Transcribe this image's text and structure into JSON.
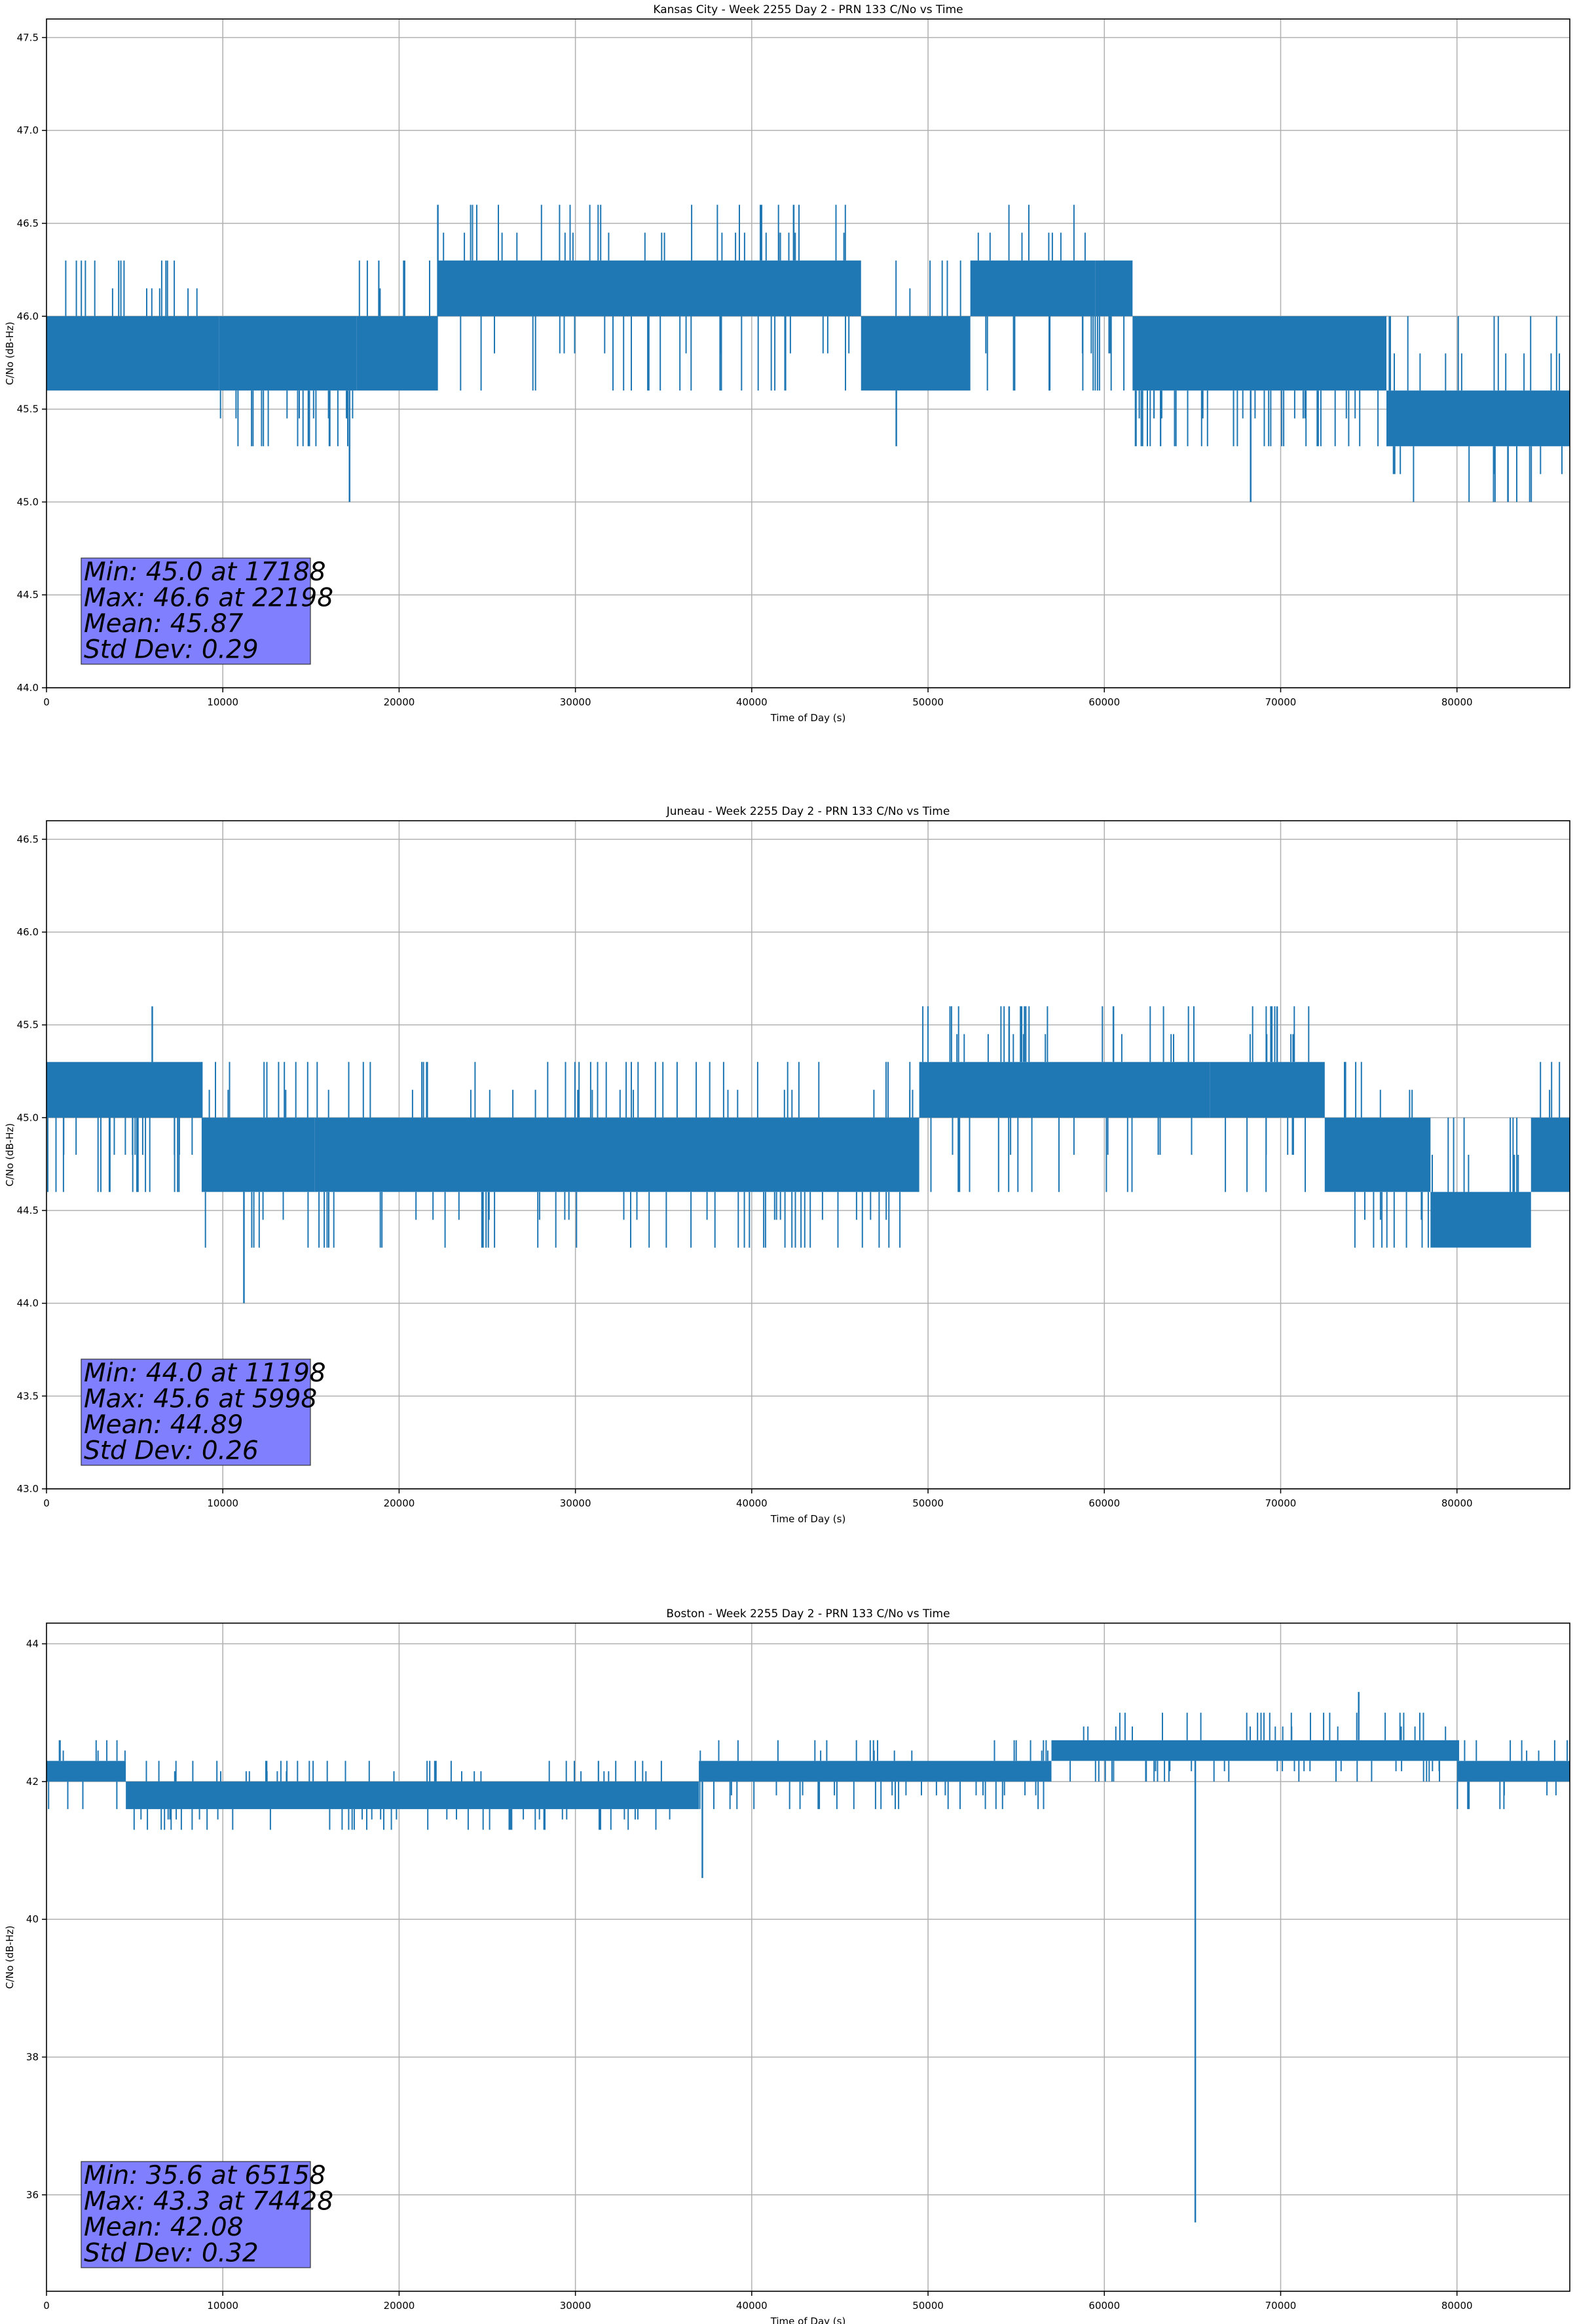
{
  "figure": {
    "background": "#ffffff",
    "series_color": "#1f77b4",
    "stats_box_color": "#8080ff",
    "grid_color": "#b0b0b0"
  },
  "chart_data": [
    {
      "type": "line",
      "title": "Kansas City - Week 2255 Day 2 - PRN 133 C/No vs Time",
      "xlabel": "Time of Day (s)",
      "ylabel": "C/No (dB-Hz)",
      "xlim": [
        0,
        86400
      ],
      "ylim": [
        44.0,
        47.6
      ],
      "xticks": [
        0,
        10000,
        20000,
        30000,
        40000,
        50000,
        60000,
        70000,
        80000
      ],
      "xtick_labels": [
        "0",
        "10000",
        "20000",
        "30000",
        "40000",
        "50000",
        "60000",
        "70000",
        "80000"
      ],
      "yticks": [
        44.0,
        44.5,
        45.0,
        45.5,
        46.0,
        46.5,
        47.0,
        47.5
      ],
      "ytick_labels": [
        "44.0",
        "44.5",
        "45.0",
        "45.5",
        "46.0",
        "46.5",
        "47.0",
        "47.5"
      ],
      "grid": true,
      "series": [
        {
          "name": "C/No",
          "segments": [
            {
              "x": [
                0,
                9800
              ],
              "levels": [
                45.6,
                46.0
              ],
              "upper": 46.3,
              "lower": 45.6
            },
            {
              "x": [
                9800,
                17600
              ],
              "levels": [
                45.6,
                46.0
              ],
              "upper": 46.0,
              "lower": 45.3
            },
            {
              "x": [
                17600,
                22200
              ],
              "levels": [
                45.6,
                46.0
              ],
              "upper": 46.3,
              "lower": 45.6
            },
            {
              "x": [
                22200,
                46200
              ],
              "levels": [
                46.0,
                46.3
              ],
              "upper": 46.6,
              "lower": 45.6
            },
            {
              "x": [
                46200,
                52400
              ],
              "levels": [
                45.6,
                46.0
              ],
              "upper": 46.3,
              "lower": 45.6
            },
            {
              "x": [
                52400,
                59500
              ],
              "levels": [
                46.0,
                46.3
              ],
              "upper": 46.6,
              "lower": 45.6
            },
            {
              "x": [
                59500,
                61600
              ],
              "levels": [
                46.0,
                46.3
              ],
              "upper": 46.3,
              "lower": 45.6
            },
            {
              "x": [
                61600,
                76000
              ],
              "levels": [
                45.6,
                46.0
              ],
              "upper": 46.0,
              "lower": 45.3
            },
            {
              "x": [
                76000,
                86400
              ],
              "levels": [
                45.3,
                45.6
              ],
              "upper": 46.0,
              "lower": 45.0
            }
          ],
          "spikes": [
            {
              "x": 17188,
              "y": 45.0
            },
            {
              "x": 22198,
              "y": 46.6
            },
            {
              "x": 48200,
              "y": 45.3
            },
            {
              "x": 68300,
              "y": 45.0
            }
          ]
        }
      ],
      "stats": {
        "min": "Min: 45.0 at 17188",
        "max": "Max: 46.6 at 22198",
        "mean": "Mean: 45.87",
        "std": "Std Dev: 0.29"
      }
    },
    {
      "type": "line",
      "title": "Juneau - Week 2255 Day 2 - PRN 133 C/No vs Time",
      "xlabel": "Time of Day (s)",
      "ylabel": "C/No (dB-Hz)",
      "xlim": [
        0,
        86400
      ],
      "ylim": [
        43.0,
        46.6
      ],
      "xticks": [
        0,
        10000,
        20000,
        30000,
        40000,
        50000,
        60000,
        70000,
        80000
      ],
      "xtick_labels": [
        "0",
        "10000",
        "20000",
        "30000",
        "40000",
        "50000",
        "60000",
        "70000",
        "80000"
      ],
      "yticks": [
        43.0,
        43.5,
        44.0,
        44.5,
        45.0,
        45.5,
        46.0,
        46.5
      ],
      "ytick_labels": [
        "43.0",
        "43.5",
        "44.0",
        "44.5",
        "45.0",
        "45.5",
        "46.0",
        "46.5"
      ],
      "grid": true,
      "series": [
        {
          "name": "C/No",
          "segments": [
            {
              "x": [
                0,
                8800
              ],
              "levels": [
                45.0,
                45.3
              ],
              "upper": 45.3,
              "lower": 44.6
            },
            {
              "x": [
                8800,
                15200
              ],
              "levels": [
                44.6,
                45.0
              ],
              "upper": 45.3,
              "lower": 44.3
            },
            {
              "x": [
                15200,
                49500
              ],
              "levels": [
                44.6,
                45.0
              ],
              "upper": 45.3,
              "lower": 44.3
            },
            {
              "x": [
                49500,
                66000
              ],
              "levels": [
                45.0,
                45.3
              ],
              "upper": 45.6,
              "lower": 44.6
            },
            {
              "x": [
                66000,
                72500
              ],
              "levels": [
                45.0,
                45.3
              ],
              "upper": 45.6,
              "lower": 44.6
            },
            {
              "x": [
                72500,
                78500
              ],
              "levels": [
                44.6,
                45.0
              ],
              "upper": 45.3,
              "lower": 44.3
            },
            {
              "x": [
                78500,
                84200
              ],
              "levels": [
                44.3,
                44.6
              ],
              "upper": 45.0,
              "lower": 44.3
            },
            {
              "x": [
                84200,
                86400
              ],
              "levels": [
                44.6,
                45.0
              ],
              "upper": 45.3,
              "lower": 44.6
            }
          ],
          "spikes": [
            {
              "x": 11198,
              "y": 44.0
            },
            {
              "x": 5998,
              "y": 45.6
            },
            {
              "x": 54600,
              "y": 45.6
            },
            {
              "x": 69800,
              "y": 45.6
            }
          ]
        }
      ],
      "stats": {
        "min": "Min: 44.0 at 11198",
        "max": "Max: 45.6 at 5998",
        "mean": "Mean: 44.89",
        "std": "Std Dev: 0.26"
      }
    },
    {
      "type": "line",
      "title": "Boston - Week 2255 Day 2 - PRN 133 C/No vs Time",
      "xlabel": "Time of Day (s)",
      "ylabel": "C/No (dB-Hz)",
      "xlim": [
        0,
        86400
      ],
      "ylim": [
        34.6,
        44.3
      ],
      "xticks": [
        0,
        10000,
        20000,
        30000,
        40000,
        50000,
        60000,
        70000,
        80000
      ],
      "xtick_labels": [
        "0",
        "10000",
        "20000",
        "30000",
        "40000",
        "50000",
        "60000",
        "70000",
        "80000"
      ],
      "yticks": [
        36,
        38,
        40,
        42,
        44
      ],
      "ytick_labels": [
        "36",
        "38",
        "40",
        "42",
        "44"
      ],
      "grid": true,
      "series": [
        {
          "name": "C/No",
          "segments": [
            {
              "x": [
                0,
                4500
              ],
              "levels": [
                42.0,
                42.3
              ],
              "upper": 42.6,
              "lower": 41.6
            },
            {
              "x": [
                4500,
                37000
              ],
              "levels": [
                41.6,
                42.0
              ],
              "upper": 42.3,
              "lower": 41.3
            },
            {
              "x": [
                37000,
                57000
              ],
              "levels": [
                42.0,
                42.3
              ],
              "upper": 42.6,
              "lower": 41.6
            },
            {
              "x": [
                57000,
                80000
              ],
              "levels": [
                42.3,
                42.6
              ],
              "upper": 43.0,
              "lower": 42.0
            },
            {
              "x": [
                80000,
                86400
              ],
              "levels": [
                42.0,
                42.3
              ],
              "upper": 42.6,
              "lower": 41.6
            }
          ],
          "spikes": [
            {
              "x": 65158,
              "y": 35.6
            },
            {
              "x": 74428,
              "y": 43.3
            },
            {
              "x": 37200,
              "y": 40.6
            }
          ]
        }
      ],
      "stats": {
        "min": "Min: 35.6 at 65158",
        "max": "Max: 43.3 at 74428",
        "mean": "Mean: 42.08",
        "std": "Std Dev: 0.32"
      }
    }
  ]
}
